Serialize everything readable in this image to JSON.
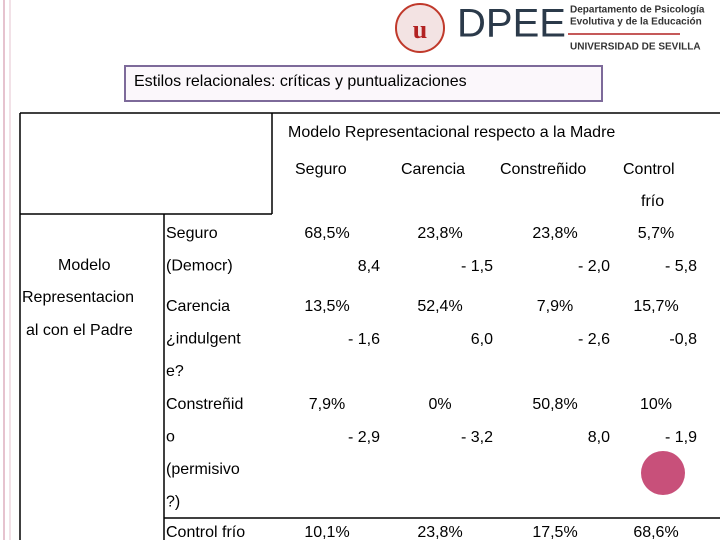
{
  "logo": {
    "acronym": "DPEE",
    "department": [
      "Departamento de Psicología",
      "Evolutiva y de la Educación"
    ],
    "university": "UNIVERSIDAD DE SEVILLA"
  },
  "title": "Estilos relacionales: críticas y puntualizaciones",
  "table": {
    "column_header": "Modelo Representacional respecto a la Madre",
    "columns": [
      [
        "Seguro"
      ],
      [
        "Carencia"
      ],
      [
        "Constreñido"
      ],
      [
        "Control",
        "frío"
      ]
    ],
    "row_header": [
      "Modelo",
      "Representacion",
      "al con el Padre"
    ],
    "rows": [
      {
        "label": [
          "Seguro",
          "(Democr)"
        ],
        "cells": [
          [
            "68,5%",
            "8,4"
          ],
          [
            "23,8%",
            "- 1,5"
          ],
          [
            "23,8%",
            "- 2,0"
          ],
          [
            "5,7%",
            "- 5,8"
          ]
        ]
      },
      {
        "label": [
          "Carencia",
          "¿indulgent",
          "e?"
        ],
        "cells": [
          [
            "13,5%",
            "- 1,6"
          ],
          [
            "52,4%",
            "6,0"
          ],
          [
            "7,9%",
            "- 2,6"
          ],
          [
            "15,7%",
            "-0,8"
          ]
        ]
      },
      {
        "label": [
          "Constreñid",
          "o",
          "(permisivo",
          "?)"
        ],
        "cells": [
          [
            "7,9%",
            "- 2,9"
          ],
          [
            "0%",
            "- 3,2"
          ],
          [
            "50,8%",
            "8,0"
          ],
          [
            "10%",
            "- 1,9"
          ]
        ]
      },
      {
        "label": [
          "Control frío"
        ],
        "cells": [
          [
            "10,1%"
          ],
          [
            "23,8%"
          ],
          [
            "17,5%"
          ],
          [
            "68,6%"
          ]
        ]
      }
    ]
  }
}
